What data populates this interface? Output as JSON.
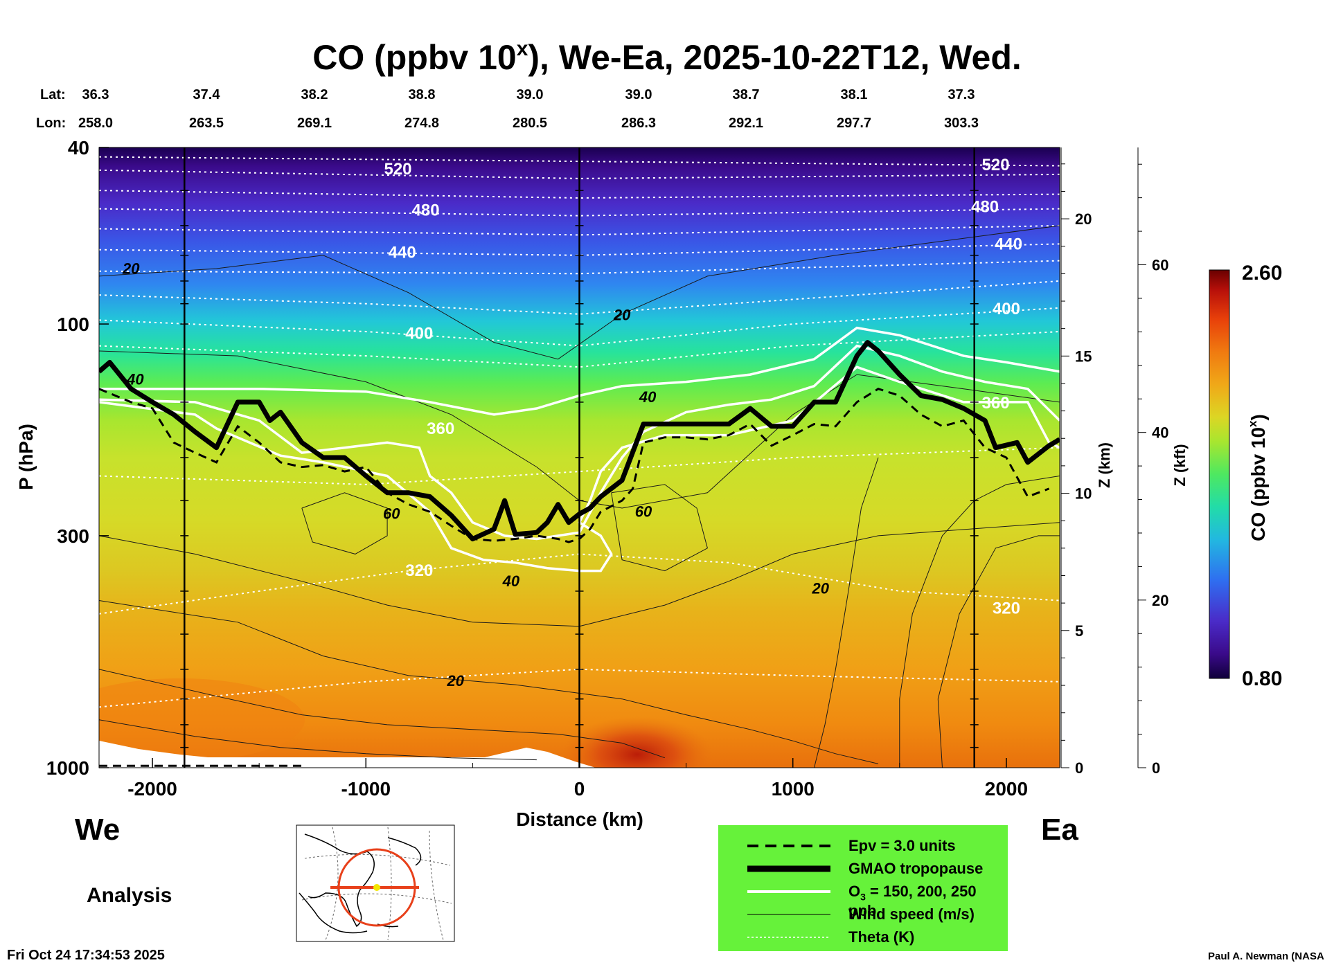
{
  "title": "CO (ppbv 10",
  "title_sup": "x",
  "title_rest": "), We-Ea, 2025-10-22T12, Wed.",
  "header_rows": {
    "lat_label": "Lat:",
    "lon_label": "Lon:",
    "lat": [
      "36.3",
      "37.4",
      "38.2",
      "38.8",
      "39.0",
      "39.0",
      "38.7",
      "38.1",
      "37.3"
    ],
    "lon": [
      "258.0",
      "263.5",
      "269.1",
      "274.8",
      "280.5",
      "286.3",
      "292.1",
      "297.7",
      "303.3"
    ]
  },
  "chart_data": {
    "type": "heatmap",
    "title": "CO (ppbv 10^x), We-Ea, 2025-10-22T12, Wed.",
    "xlabel": "Distance (km)",
    "ylabel": "P (hPa)",
    "xlim": [
      -2250,
      2250
    ],
    "ylim_hpa": [
      1000,
      40
    ],
    "y_scale": "log",
    "x_ticks": [
      -2000,
      -1000,
      0,
      1000,
      2000
    ],
    "x_tick_labels": [
      "-2000",
      "-1000",
      "0",
      "1000",
      "2000"
    ],
    "y_ticks": [
      40,
      100,
      300,
      1000
    ],
    "y_tick_labels": [
      "40",
      "100",
      "300",
      "1000"
    ],
    "z_km_label": "Z (km)",
    "z_km_ticks": [
      0,
      5,
      10,
      15,
      20
    ],
    "z_kft_label": "Z (kft)",
    "z_kft_ticks": [
      0,
      20,
      40,
      60
    ],
    "colorbar": {
      "label": "CO (ppbv 10^x)",
      "min_label": "0.80",
      "max_label": "2.60",
      "min": 0.8,
      "max": 2.6
    },
    "vertical_lines_km": [
      -1850,
      0,
      1850
    ],
    "theta_labels": [
      {
        "text": "520",
        "x": -850,
        "p": 46
      },
      {
        "text": "480",
        "x": -720,
        "p": 57
      },
      {
        "text": "440",
        "x": -830,
        "p": 71
      },
      {
        "text": "400",
        "x": -750,
        "p": 108
      },
      {
        "text": "360",
        "x": -650,
        "p": 177
      },
      {
        "text": "320",
        "x": -750,
        "p": 370
      },
      {
        "text": "520",
        "x": 1950,
        "p": 45
      },
      {
        "text": "480",
        "x": 1900,
        "p": 56
      },
      {
        "text": "440",
        "x": 2010,
        "p": 68
      },
      {
        "text": "400",
        "x": 2000,
        "p": 95
      },
      {
        "text": "360",
        "x": 1950,
        "p": 155
      },
      {
        "text": "320",
        "x": 2000,
        "p": 450
      }
    ],
    "wind_labels": [
      {
        "text": "20",
        "x": -2100,
        "p": 77
      },
      {
        "text": "20",
        "x": 200,
        "p": 98
      },
      {
        "text": "40",
        "x": -2080,
        "p": 137
      },
      {
        "text": "40",
        "x": 320,
        "p": 150
      },
      {
        "text": "60",
        "x": -880,
        "p": 275
      },
      {
        "text": "60",
        "x": 300,
        "p": 272
      },
      {
        "text": "40",
        "x": -320,
        "p": 390
      },
      {
        "text": "20",
        "x": 1130,
        "p": 405
      },
      {
        "text": "20",
        "x": -580,
        "p": 655
      }
    ],
    "epv_line": [
      [
        -2250,
        140
      ],
      [
        -2100,
        150
      ],
      [
        -2000,
        155
      ],
      [
        -1900,
        185
      ],
      [
        -1800,
        195
      ],
      [
        -1700,
        205
      ],
      [
        -1600,
        170
      ],
      [
        -1500,
        185
      ],
      [
        -1400,
        205
      ],
      [
        -1300,
        210
      ],
      [
        -1200,
        208
      ],
      [
        -1100,
        215
      ],
      [
        -1000,
        210
      ],
      [
        -900,
        240
      ],
      [
        -800,
        255
      ],
      [
        -700,
        265
      ],
      [
        -600,
        285
      ],
      [
        -500,
        305
      ],
      [
        -400,
        308
      ],
      [
        -300,
        305
      ],
      [
        -200,
        300
      ],
      [
        -100,
        305
      ],
      [
        -50,
        310
      ],
      [
        0,
        305
      ],
      [
        50,
        290
      ],
      [
        100,
        265
      ],
      [
        200,
        250
      ],
      [
        250,
        235
      ],
      [
        300,
        185
      ],
      [
        400,
        180
      ],
      [
        500,
        180
      ],
      [
        600,
        182
      ],
      [
        700,
        178
      ],
      [
        800,
        168
      ],
      [
        900,
        188
      ],
      [
        1000,
        178
      ],
      [
        1100,
        168
      ],
      [
        1200,
        170
      ],
      [
        1300,
        150
      ],
      [
        1400,
        140
      ],
      [
        1500,
        145
      ],
      [
        1600,
        160
      ],
      [
        1700,
        170
      ],
      [
        1800,
        165
      ],
      [
        1900,
        190
      ],
      [
        2000,
        200
      ],
      [
        2100,
        245
      ],
      [
        2200,
        235
      ]
    ],
    "tropopause_line": [
      [
        -2250,
        128
      ],
      [
        -2200,
        122
      ],
      [
        -2100,
        140
      ],
      [
        -2000,
        150
      ],
      [
        -1900,
        160
      ],
      [
        -1800,
        175
      ],
      [
        -1700,
        190
      ],
      [
        -1600,
        150
      ],
      [
        -1500,
        150
      ],
      [
        -1450,
        165
      ],
      [
        -1400,
        158
      ],
      [
        -1300,
        185
      ],
      [
        -1200,
        200
      ],
      [
        -1100,
        200
      ],
      [
        -1000,
        220
      ],
      [
        -900,
        240
      ],
      [
        -800,
        240
      ],
      [
        -700,
        245
      ],
      [
        -600,
        270
      ],
      [
        -500,
        305
      ],
      [
        -400,
        290
      ],
      [
        -350,
        250
      ],
      [
        -300,
        298
      ],
      [
        -200,
        295
      ],
      [
        -150,
        280
      ],
      [
        -100,
        255
      ],
      [
        -50,
        280
      ],
      [
        0,
        268
      ],
      [
        50,
        260
      ],
      [
        100,
        245
      ],
      [
        200,
        225
      ],
      [
        300,
        168
      ],
      [
        400,
        168
      ],
      [
        500,
        168
      ],
      [
        600,
        168
      ],
      [
        700,
        168
      ],
      [
        800,
        155
      ],
      [
        900,
        170
      ],
      [
        1000,
        170
      ],
      [
        1100,
        150
      ],
      [
        1200,
        150
      ],
      [
        1300,
        118
      ],
      [
        1350,
        110
      ],
      [
        1400,
        115
      ],
      [
        1500,
        130
      ],
      [
        1600,
        145
      ],
      [
        1700,
        148
      ],
      [
        1800,
        155
      ],
      [
        1900,
        165
      ],
      [
        1950,
        190
      ],
      [
        2050,
        185
      ],
      [
        2100,
        205
      ],
      [
        2200,
        188
      ],
      [
        2250,
        182
      ]
    ],
    "o3_contours": [
      [
        [
          -2250,
          140
        ],
        [
          -1500,
          140
        ],
        [
          -1000,
          142
        ],
        [
          -700,
          150
        ],
        [
          -400,
          160
        ],
        [
          -200,
          155
        ],
        [
          0,
          145
        ],
        [
          200,
          138
        ],
        [
          500,
          135
        ],
        [
          800,
          130
        ],
        [
          1100,
          120
        ],
        [
          1300,
          102
        ],
        [
          1500,
          106
        ],
        [
          1800,
          118
        ],
        [
          2000,
          122
        ],
        [
          2250,
          128
        ]
      ],
      [
        [
          -2250,
          148
        ],
        [
          -1800,
          150
        ],
        [
          -1500,
          165
        ],
        [
          -1300,
          195
        ],
        [
          -1100,
          190
        ],
        [
          -900,
          185
        ],
        [
          -750,
          190
        ],
        [
          -700,
          220
        ],
        [
          -600,
          240
        ],
        [
          -500,
          280
        ],
        [
          -350,
          300
        ],
        [
          -200,
          305
        ],
        [
          -100,
          300
        ],
        [
          0,
          295
        ],
        [
          100,
          240
        ],
        [
          200,
          200
        ],
        [
          300,
          175
        ],
        [
          500,
          158
        ],
        [
          700,
          152
        ],
        [
          900,
          148
        ],
        [
          1100,
          138
        ],
        [
          1300,
          112
        ],
        [
          1500,
          118
        ],
        [
          1700,
          128
        ],
        [
          1900,
          135
        ],
        [
          2100,
          140
        ],
        [
          2250,
          165
        ]
      ],
      [
        [
          -2250,
          150
        ],
        [
          -1800,
          160
        ],
        [
          -1700,
          172
        ],
        [
          -1400,
          198
        ],
        [
          -1200,
          205
        ],
        [
          -900,
          220
        ],
        [
          -700,
          265
        ],
        [
          -600,
          320
        ],
        [
          -450,
          340
        ],
        [
          -300,
          345
        ],
        [
          -150,
          355
        ],
        [
          0,
          360
        ],
        [
          100,
          360
        ],
        [
          150,
          330
        ],
        [
          100,
          300
        ],
        [
          0,
          280
        ],
        [
          50,
          250
        ],
        [
          100,
          215
        ],
        [
          200,
          190
        ],
        [
          400,
          178
        ],
        [
          700,
          178
        ],
        [
          1000,
          165
        ],
        [
          1300,
          125
        ],
        [
          1500,
          135
        ],
        [
          1800,
          150
        ],
        [
          2100,
          150
        ],
        [
          2200,
          185
        ],
        [
          2250,
          190
        ]
      ]
    ],
    "theta_levels_hpa": [
      [
        [
          -2250,
          42
        ],
        [
          0,
          43
        ],
        [
          2250,
          44
        ]
      ],
      [
        [
          -2250,
          45
        ],
        [
          0,
          47
        ],
        [
          2250,
          46
        ]
      ],
      [
        [
          -2250,
          50
        ],
        [
          0,
          52
        ],
        [
          2250,
          51
        ]
      ],
      [
        [
          -2250,
          55
        ],
        [
          0,
          57
        ],
        [
          2250,
          55
        ]
      ],
      [
        [
          -2250,
          61
        ],
        [
          0,
          63
        ],
        [
          2250,
          60
        ]
      ],
      [
        [
          -2250,
          68
        ],
        [
          0,
          70
        ],
        [
          2250,
          66
        ]
      ],
      [
        [
          -2250,
          76
        ],
        [
          0,
          77
        ],
        [
          2250,
          72
        ]
      ],
      [
        [
          -2250,
          86
        ],
        [
          -1000,
          90
        ],
        [
          0,
          95
        ],
        [
          1000,
          88
        ],
        [
          2250,
          80
        ]
      ],
      [
        [
          -2250,
          98
        ],
        [
          -1000,
          104
        ],
        [
          0,
          112
        ],
        [
          1000,
          100
        ],
        [
          2250,
          92
        ]
      ],
      [
        [
          -2250,
          112
        ],
        [
          -1000,
          118
        ],
        [
          0,
          125
        ],
        [
          1000,
          112
        ],
        [
          2250,
          104
        ]
      ],
      [
        [
          -2250,
          220
        ],
        [
          -1000,
          230
        ],
        [
          0,
          215
        ],
        [
          1000,
          200
        ],
        [
          2250,
          190
        ]
      ],
      [
        [
          -2250,
          450
        ],
        [
          -1500,
          400
        ],
        [
          -800,
          360
        ],
        [
          0,
          330
        ],
        [
          700,
          345
        ],
        [
          1500,
          400
        ],
        [
          2250,
          420
        ]
      ],
      [
        [
          -2250,
          730
        ],
        [
          -1000,
          640
        ],
        [
          0,
          600
        ],
        [
          1000,
          620
        ],
        [
          2250,
          640
        ]
      ]
    ]
  },
  "side_labels": {
    "west": "We",
    "east": "Ea",
    "analysis": "Analysis"
  },
  "legend": {
    "items": [
      "Epv = 3.0 units",
      "GMAO tropopause",
      "O3 = 150, 200, 250 ppb",
      "Wind speed (m/s)",
      "Theta (K)"
    ],
    "o3_prefix": "O",
    "o3_sub": "3",
    "o3_suffix": " = 150, 200, 250 ppb"
  },
  "footer": {
    "timestamp": "Fri Oct 24 17:34:53 2025",
    "credit": "Paul A. Newman (NASA"
  },
  "colors": {
    "legend_bg": "#66f23a",
    "map_route": "#e8401a",
    "map_point": "#f2e600"
  }
}
